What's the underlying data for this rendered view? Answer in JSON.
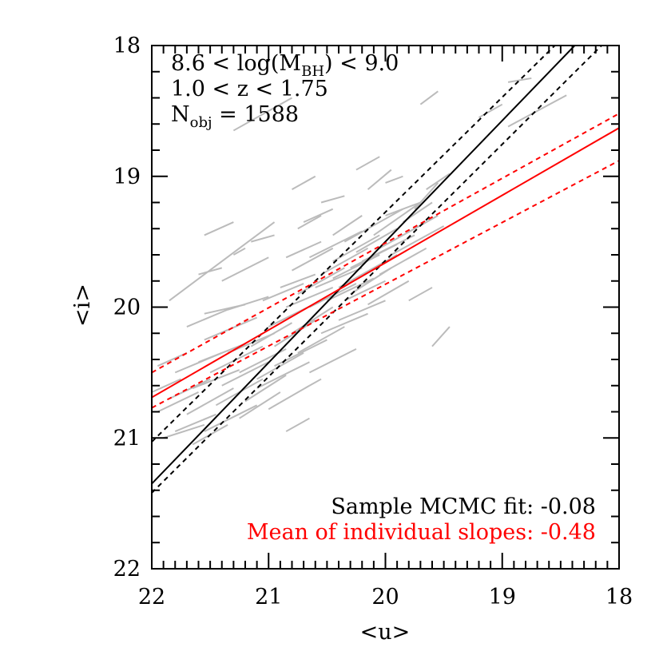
{
  "chart_data": {
    "type": "line",
    "xlabel": "<u>",
    "ylabel": "<i>",
    "xlim": [
      22,
      18
    ],
    "ylim": [
      22,
      18
    ],
    "x_ticks": [
      22,
      21,
      20,
      19,
      18
    ],
    "y_ticks": [
      18,
      19,
      20,
      21,
      22
    ],
    "x_tick_labels": [
      "22",
      "21",
      "20",
      "19",
      "18"
    ],
    "y_tick_labels": [
      "18",
      "19",
      "20",
      "21",
      "22"
    ],
    "annotations": {
      "mass_prefix": "8.6 < log(M",
      "mass_sub": "BH",
      "mass_suffix": ") < 9.0",
      "redshift": "1.0 < z < 1.75",
      "nobj_prefix": "N",
      "nobj_sub": "obj",
      "nobj_suffix": " = 1588"
    },
    "legend": [
      {
        "label": "Sample MCMC fit: -0.08",
        "color": "#000000"
      },
      {
        "label": "Mean of individual slopes: -0.48",
        "color": "#ff0000"
      }
    ],
    "series": [
      {
        "name": "Sample MCMC fit",
        "color": "#000000",
        "style": "solid",
        "points": [
          [
            22,
            21.35
          ],
          [
            18.38,
            18
          ]
        ]
      },
      {
        "name": "Sample MCMC fit lower",
        "color": "#000000",
        "style": "dashed",
        "points": [
          [
            22,
            21.03
          ],
          [
            18.55,
            18
          ]
        ]
      },
      {
        "name": "Sample MCMC fit upper",
        "color": "#000000",
        "style": "dashed",
        "points": [
          [
            22,
            21.42
          ],
          [
            18.15,
            18
          ]
        ]
      },
      {
        "name": "Mean of individual slopes",
        "color": "#ff0000",
        "style": "solid",
        "points": [
          [
            22,
            20.69
          ],
          [
            18,
            18.63
          ]
        ]
      },
      {
        "name": "Mean of individual slopes upper",
        "color": "#ff0000",
        "style": "dashed",
        "points": [
          [
            22,
            20.5
          ],
          [
            18,
            18.52
          ]
        ]
      },
      {
        "name": "Mean of individual slopes lower",
        "color": "#ff0000",
        "style": "dashed",
        "points": [
          [
            22,
            20.77
          ],
          [
            18,
            18.88
          ]
        ]
      }
    ],
    "object_segments": {
      "color": "#bbbbbb",
      "segments": [
        [
          [
            21.3,
            18.65
          ],
          [
            20.8,
            18.4
          ]
        ],
        [
          [
            20.8,
            19.1
          ],
          [
            20.6,
            19.0
          ]
        ],
        [
          [
            19.7,
            18.45
          ],
          [
            19.55,
            18.35
          ]
        ],
        [
          [
            19.2,
            18.55
          ],
          [
            19.0,
            18.45
          ]
        ],
        [
          [
            18.95,
            18.28
          ],
          [
            18.75,
            18.25
          ]
        ],
        [
          [
            18.95,
            18.62
          ],
          [
            18.45,
            18.38
          ]
        ],
        [
          [
            20.25,
            18.95
          ],
          [
            20.05,
            18.85
          ]
        ],
        [
          [
            21.85,
            19.95
          ],
          [
            20.95,
            19.35
          ]
        ],
        [
          [
            21.3,
            19.6
          ],
          [
            21.2,
            19.55
          ]
        ],
        [
          [
            21.4,
            19.8
          ],
          [
            21.0,
            19.62
          ]
        ],
        [
          [
            20.85,
            19.62
          ],
          [
            20.55,
            19.5
          ]
        ],
        [
          [
            20.75,
            19.4
          ],
          [
            20.55,
            19.3
          ]
        ],
        [
          [
            20.45,
            19.45
          ],
          [
            20.2,
            19.3
          ]
        ],
        [
          [
            20.65,
            19.62
          ],
          [
            20.2,
            19.42
          ]
        ],
        [
          [
            20.15,
            19.1
          ],
          [
            19.95,
            18.95
          ]
        ],
        [
          [
            20.0,
            19.3
          ],
          [
            19.7,
            19.2
          ]
        ],
        [
          [
            19.85,
            19.35
          ],
          [
            19.6,
            19.2
          ]
        ],
        [
          [
            19.75,
            19.25
          ],
          [
            19.55,
            19.05
          ]
        ],
        [
          [
            19.65,
            19.1
          ],
          [
            19.45,
            18.98
          ]
        ],
        [
          [
            20.35,
            19.5
          ],
          [
            19.85,
            19.25
          ]
        ],
        [
          [
            20.1,
            19.45
          ],
          [
            19.7,
            19.2
          ]
        ],
        [
          [
            20.05,
            19.55
          ],
          [
            19.55,
            19.3
          ]
        ],
        [
          [
            20.25,
            19.58
          ],
          [
            19.9,
            19.4
          ]
        ],
        [
          [
            20.45,
            19.65
          ],
          [
            20.05,
            19.45
          ]
        ],
        [
          [
            20.8,
            19.72
          ],
          [
            20.45,
            19.55
          ]
        ],
        [
          [
            20.55,
            19.75
          ],
          [
            20.15,
            19.55
          ]
        ],
        [
          [
            20.4,
            19.85
          ],
          [
            19.9,
            19.6
          ]
        ],
        [
          [
            20.3,
            19.9
          ],
          [
            19.95,
            19.7
          ]
        ],
        [
          [
            20.6,
            19.85
          ],
          [
            20.2,
            19.7
          ]
        ],
        [
          [
            20.75,
            19.9
          ],
          [
            20.35,
            19.7
          ]
        ],
        [
          [
            20.9,
            19.85
          ],
          [
            20.6,
            19.75
          ]
        ],
        [
          [
            20.5,
            19.95
          ],
          [
            20.1,
            19.78
          ]
        ],
        [
          [
            20.35,
            19.95
          ],
          [
            20.0,
            19.8
          ]
        ],
        [
          [
            20.15,
            19.98
          ],
          [
            19.8,
            19.8
          ]
        ],
        [
          [
            20.65,
            20.0
          ],
          [
            20.25,
            19.82
          ]
        ],
        [
          [
            20.85,
            20.0
          ],
          [
            20.45,
            19.85
          ]
        ],
        [
          [
            21.05,
            19.95
          ],
          [
            20.7,
            19.82
          ]
        ],
        [
          [
            21.35,
            20.02
          ],
          [
            21.0,
            19.92
          ]
        ],
        [
          [
            21.55,
            20.05
          ],
          [
            21.2,
            19.98
          ]
        ],
        [
          [
            21.7,
            20.15
          ],
          [
            21.3,
            20.0
          ]
        ],
        [
          [
            21.55,
            20.25
          ],
          [
            21.1,
            20.08
          ]
        ],
        [
          [
            21.0,
            20.15
          ],
          [
            20.55,
            19.95
          ]
        ],
        [
          [
            20.8,
            20.2
          ],
          [
            20.45,
            20.0
          ]
        ],
        [
          [
            20.95,
            20.3
          ],
          [
            20.6,
            20.1
          ]
        ],
        [
          [
            21.15,
            20.3
          ],
          [
            20.8,
            20.12
          ]
        ],
        [
          [
            21.35,
            20.35
          ],
          [
            20.95,
            20.2
          ]
        ],
        [
          [
            21.6,
            20.42
          ],
          [
            21.2,
            20.28
          ]
        ],
        [
          [
            21.8,
            20.5
          ],
          [
            21.4,
            20.35
          ]
        ],
        [
          [
            21.5,
            20.5
          ],
          [
            21.05,
            20.3
          ]
        ],
        [
          [
            21.25,
            20.5
          ],
          [
            20.85,
            20.32
          ]
        ],
        [
          [
            21.1,
            20.55
          ],
          [
            20.7,
            20.35
          ]
        ],
        [
          [
            21.4,
            20.6
          ],
          [
            21.0,
            20.42
          ]
        ],
        [
          [
            21.65,
            20.62
          ],
          [
            21.25,
            20.48
          ]
        ],
        [
          [
            21.85,
            20.7
          ],
          [
            21.5,
            20.55
          ]
        ],
        [
          [
            21.95,
            20.8
          ],
          [
            21.6,
            20.65
          ]
        ],
        [
          [
            21.7,
            20.82
          ],
          [
            21.3,
            20.62
          ]
        ],
        [
          [
            21.45,
            20.75
          ],
          [
            21.05,
            20.55
          ]
        ],
        [
          [
            21.2,
            20.72
          ],
          [
            20.85,
            20.52
          ]
        ],
        [
          [
            21.1,
            20.62
          ],
          [
            20.65,
            20.42
          ]
        ],
        [
          [
            20.95,
            20.45
          ],
          [
            20.5,
            20.25
          ]
        ],
        [
          [
            20.75,
            20.35
          ],
          [
            20.35,
            20.15
          ]
        ],
        [
          [
            20.55,
            20.2
          ],
          [
            20.15,
            20.05
          ]
        ],
        [
          [
            20.4,
            20.1
          ],
          [
            20.0,
            19.95
          ]
        ],
        [
          [
            21.55,
            20.95
          ],
          [
            21.1,
            20.75
          ]
        ],
        [
          [
            21.8,
            20.95
          ],
          [
            21.45,
            20.82
          ]
        ],
        [
          [
            21.25,
            20.85
          ],
          [
            20.9,
            20.65
          ]
        ],
        [
          [
            21.0,
            20.78
          ],
          [
            20.65,
            20.6
          ]
        ],
        [
          [
            20.65,
            20.5
          ],
          [
            20.25,
            20.32
          ]
        ],
        [
          [
            21.9,
            21.0
          ],
          [
            21.55,
            20.9
          ]
        ],
        [
          [
            21.65,
            21.05
          ],
          [
            21.35,
            20.9
          ]
        ],
        [
          [
            20.3,
            19.7
          ],
          [
            19.9,
            19.52
          ]
        ],
        [
          [
            20.2,
            19.65
          ],
          [
            19.75,
            19.45
          ]
        ],
        [
          [
            20.05,
            19.75
          ],
          [
            19.65,
            19.55
          ]
        ],
        [
          [
            19.95,
            19.6
          ],
          [
            19.5,
            19.38
          ]
        ],
        [
          [
            20.45,
            19.78
          ],
          [
            20.05,
            19.6
          ]
        ],
        [
          [
            21.15,
            19.5
          ],
          [
            20.95,
            19.45
          ]
        ],
        [
          [
            21.55,
            19.45
          ],
          [
            21.3,
            19.35
          ]
        ],
        [
          [
            19.6,
            20.3
          ],
          [
            19.45,
            20.15
          ]
        ],
        [
          [
            19.8,
            19.95
          ],
          [
            19.6,
            19.85
          ]
        ],
        [
          [
            20.65,
            20.6
          ],
          [
            20.55,
            20.55
          ]
        ],
        [
          [
            20.85,
            20.95
          ],
          [
            20.65,
            20.85
          ]
        ],
        [
          [
            21.6,
            19.75
          ],
          [
            21.4,
            19.7
          ]
        ],
        [
          [
            22.0,
            20.65
          ],
          [
            21.75,
            20.55
          ]
        ],
        [
          [
            21.95,
            20.45
          ],
          [
            21.7,
            20.35
          ]
        ],
        [
          [
            20.0,
            19.05
          ],
          [
            19.85,
            19.0
          ]
        ],
        [
          [
            20.7,
            19.35
          ],
          [
            20.45,
            19.25
          ]
        ],
        [
          [
            20.55,
            19.2
          ],
          [
            20.35,
            19.15
          ]
        ]
      ]
    }
  }
}
